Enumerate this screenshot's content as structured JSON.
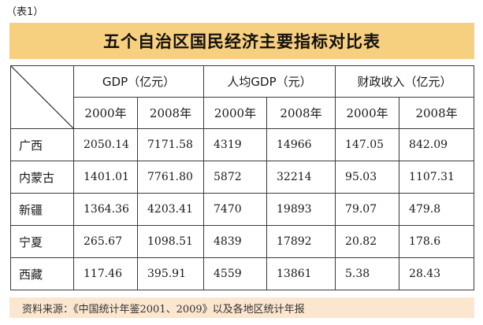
{
  "caption": "（表1）",
  "title": "五个自治区国民经济主要指标对比表",
  "table": {
    "groups": [
      "GDP（亿元）",
      "人均GDP（元）",
      "财政收入（亿元）"
    ],
    "years": [
      "2000年",
      "2008年",
      "2000年",
      "2008年",
      "2000年",
      "2008年"
    ],
    "rows": [
      {
        "region": "广西",
        "values": [
          "2050.14",
          "7171.58",
          "4319",
          "14966",
          "147.05",
          "842.09"
        ]
      },
      {
        "region": "内蒙古",
        "values": [
          "1401.01",
          "7761.80",
          "5872",
          "32214",
          "95.03",
          "1107.31"
        ]
      },
      {
        "region": "新疆",
        "values": [
          "1364.36",
          "4203.41",
          "7470",
          "19893",
          "79.07",
          "479.8"
        ]
      },
      {
        "region": "宁夏",
        "values": [
          "265.67",
          "1098.51",
          "4839",
          "17892",
          "20.82",
          "178.6"
        ]
      },
      {
        "region": "西藏",
        "values": [
          "117.46",
          "395.91",
          "4559",
          "13861",
          "5.38",
          "28.43"
        ]
      }
    ]
  },
  "source": "资料来源：《中国统计年鉴2001、2009》以及各地区统计年报",
  "colors": {
    "title_background": "#f6cf7f",
    "source_background": "#fbe6cf",
    "border": "#3a3a3a"
  }
}
